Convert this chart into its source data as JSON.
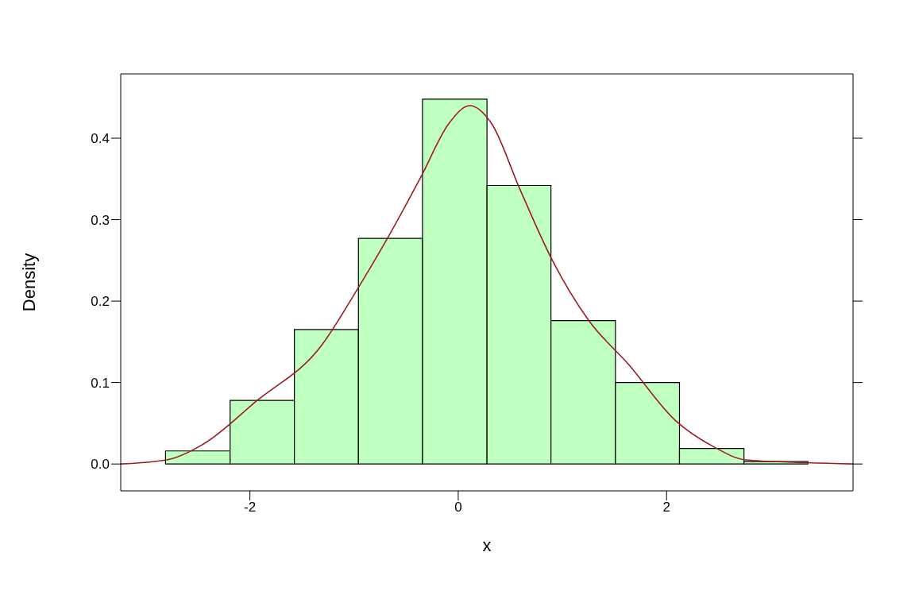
{
  "chart_data": {
    "type": "histogram",
    "xlabel": "x",
    "ylabel": "Density",
    "bins": [
      -2.81,
      -2.19,
      -1.573,
      -0.958,
      -0.343,
      0.276,
      0.89,
      1.509,
      2.124,
      2.743,
      3.357
    ],
    "values": [
      0.016,
      0.078,
      0.165,
      0.277,
      0.448,
      0.342,
      0.176,
      0.1,
      0.019,
      0.003
    ],
    "color": "#bfffbf",
    "series": [
      {
        "type": "line",
        "color": "#9e1b22",
        "x": [
          -3.24,
          -2.8,
          -2.44,
          -1.94,
          -1.31,
          -0.99,
          -0.68,
          -0.36,
          -0.09,
          0.11,
          0.32,
          0.59,
          0.9,
          1.26,
          1.63,
          2.08,
          2.44,
          2.76,
          3.25,
          3.79
        ],
        "values": [
          0,
          0.005,
          0.025,
          0.077,
          0.146,
          0.21,
          0.277,
          0.352,
          0.418,
          0.44,
          0.418,
          0.338,
          0.251,
          0.175,
          0.123,
          0.054,
          0.022,
          0.005,
          0.002,
          0
        ]
      }
    ],
    "xlim": [
      -3.24,
      3.79
    ],
    "xticks": [
      -2,
      0,
      2
    ],
    "ylim": [
      -0.033,
      0.479
    ],
    "yticks": [
      {
        "value": 0,
        "label": "0.0"
      },
      0.1,
      0.2,
      0.3,
      0.4
    ],
    "grid": false,
    "legend": false
  }
}
